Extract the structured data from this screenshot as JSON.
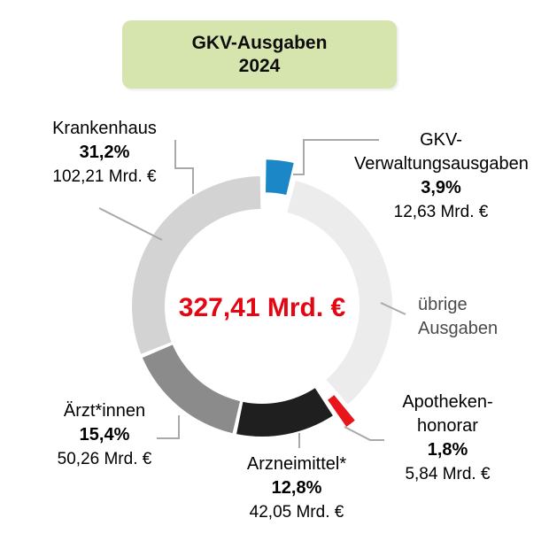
{
  "title": {
    "line1": "GKV-Ausgaben",
    "line2": "2024"
  },
  "center": {
    "total": "327,41 Mrd. €"
  },
  "colors": {
    "title_bg": "#d6e4ae",
    "total_text": "#e30613",
    "leader_line": "#a9a9a9",
    "secondary_text": "#4a4a4a",
    "segment_blue": "#1c87c6",
    "segment_red": "#e8161b",
    "segment_black": "#1f1f1f",
    "segment_gray": "#8b8b8b",
    "segment_lightgray": "#d3d3d3",
    "segment_palegray": "#ececec"
  },
  "chart_data": {
    "type": "pie",
    "subtype": "donut",
    "title": "GKV-Ausgaben 2024",
    "center_label": "327,41 Mrd. €",
    "start_angle_deg": 0,
    "direction": "clockwise",
    "legend_position": "callouts",
    "segments": [
      {
        "id": "verwaltung",
        "label": "GKV-Verwaltungsausgaben",
        "percent": 3.9,
        "value_mrd_eur": 12.63,
        "color": "#1c87c6",
        "exploded": true
      },
      {
        "id": "uebrige",
        "label": "übrige Ausgaben",
        "percent": 34.9,
        "value_mrd_eur": null,
        "color": "#ececec",
        "exploded": false
      },
      {
        "id": "apotheken",
        "label": "Apothekenhonorar",
        "percent": 1.8,
        "value_mrd_eur": 5.84,
        "color": "#e8161b",
        "exploded": true
      },
      {
        "id": "arzneimittel",
        "label": "Arzneimittel*",
        "percent": 12.8,
        "value_mrd_eur": 42.05,
        "color": "#1f1f1f",
        "exploded": false
      },
      {
        "id": "aerzte",
        "label": "Ärzt*innen",
        "percent": 15.4,
        "value_mrd_eur": 50.26,
        "color": "#8b8b8b",
        "exploded": false
      },
      {
        "id": "krankenhaus",
        "label": "Krankenhaus",
        "percent": 31.2,
        "value_mrd_eur": 102.21,
        "color": "#d3d3d3",
        "exploded": false
      }
    ]
  },
  "callouts": {
    "krankenhaus": {
      "name": "Krankenhaus",
      "percent": "31,2%",
      "value": "102,21 Mrd. €"
    },
    "verwaltung": {
      "name_line1": "GKV-",
      "name_line2": "Verwaltungsausgaben",
      "percent": "3,9%",
      "value": "12,63 Mrd. €"
    },
    "uebrige": {
      "name_line1": "übrige",
      "name_line2": "Ausgaben"
    },
    "aerzte": {
      "name": "Ärzt*innen",
      "percent": "15,4%",
      "value": "50,26 Mrd. €"
    },
    "arzneimittel": {
      "name": "Arzneimittel*",
      "percent": "12,8%",
      "value": "42,05 Mrd. €"
    },
    "apotheken": {
      "name_line1": "Apotheken-",
      "name_line2": "honorar",
      "percent": "1,8%",
      "value": "5,84 Mrd. €"
    }
  }
}
